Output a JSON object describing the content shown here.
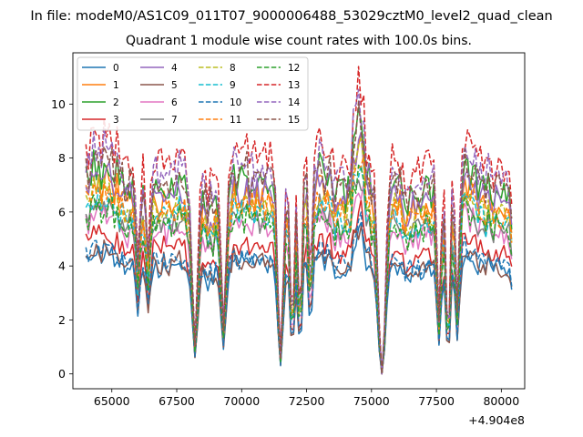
{
  "chart_data": {
    "type": "line",
    "suptitle": "In file: modeM0/AS1C09_011T07_9000006488_53029cztM0_level2_quad_clean",
    "title": "Quadrant 1 module wise count rates with 100.0s bins.",
    "xlabel": "",
    "ylabel": "",
    "offset_text": "+4.904e8",
    "xlim": [
      63500,
      80900
    ],
    "ylim": [
      -0.55,
      11.9
    ],
    "x_ticks": [
      65000,
      67500,
      70000,
      72500,
      75000,
      77500,
      80000
    ],
    "x_tick_labels": [
      "65000",
      "67500",
      "70000",
      "72500",
      "75000",
      "77500",
      "80000"
    ],
    "y_ticks": [
      0,
      2,
      4,
      6,
      8,
      10
    ],
    "y_tick_labels": [
      "0",
      "2",
      "4",
      "6",
      "8",
      "10"
    ],
    "legend_position": "upper-left",
    "x_start": 64000,
    "x_end": 80400,
    "x_step": 100,
    "gti_gaps": [
      [
        65900,
        66000
      ],
      [
        67400,
        67500
      ],
      [
        69300,
        69400
      ],
      [
        71200,
        71300
      ],
      [
        75000,
        75100
      ],
      [
        76600,
        76700
      ],
      [
        79000,
        79100
      ]
    ],
    "dips": [
      {
        "center": 66000,
        "depth": 0.4,
        "width": 90
      },
      {
        "center": 66400,
        "depth": 0.35,
        "width": 90
      },
      {
        "center": 68200,
        "depth": 0.85,
        "width": 140
      },
      {
        "center": 69300,
        "depth": 0.75,
        "width": 130
      },
      {
        "center": 71500,
        "depth": 0.92,
        "width": 140
      },
      {
        "center": 71950,
        "depth": 0.75,
        "width": 120
      },
      {
        "center": 72250,
        "depth": 0.72,
        "width": 120
      },
      {
        "center": 72650,
        "depth": 0.55,
        "width": 110
      },
      {
        "center": 75400,
        "depth": 1.0,
        "width": 200
      },
      {
        "center": 77600,
        "depth": 0.75,
        "width": 110
      },
      {
        "center": 77950,
        "depth": 0.85,
        "width": 120
      },
      {
        "center": 78300,
        "depth": 0.7,
        "width": 110
      },
      {
        "center": 80400,
        "depth": 0.25,
        "width": 80
      }
    ],
    "flare": {
      "center": 74500,
      "amplitude": 0.5,
      "width": 260
    },
    "series": [
      {
        "name": "0",
        "color": "#1f77b4",
        "linestyle": "solid",
        "level": 3.95
      },
      {
        "name": "1",
        "color": "#ff7f0e",
        "linestyle": "solid",
        "level": 6.4
      },
      {
        "name": "2",
        "color": "#2ca02c",
        "linestyle": "solid",
        "level": 6.9
      },
      {
        "name": "3",
        "color": "#d62728",
        "linestyle": "solid",
        "level": 4.6
      },
      {
        "name": "4",
        "color": "#9467bd",
        "linestyle": "solid",
        "level": 6.6
      },
      {
        "name": "5",
        "color": "#8c564b",
        "linestyle": "solid",
        "level": 4.05
      },
      {
        "name": "6",
        "color": "#e377c2",
        "linestyle": "solid",
        "level": 5.3
      },
      {
        "name": "7",
        "color": "#7f7f7f",
        "linestyle": "solid",
        "level": 5.6
      },
      {
        "name": "8",
        "color": "#bcbd22",
        "linestyle": "dashed",
        "level": 6.1
      },
      {
        "name": "9",
        "color": "#17becf",
        "linestyle": "dashed",
        "level": 5.8
      },
      {
        "name": "10",
        "color": "#1f77b4",
        "linestyle": "dashed",
        "level": 4.2
      },
      {
        "name": "11",
        "color": "#ff7f0e",
        "linestyle": "dashed",
        "level": 6.05
      },
      {
        "name": "12",
        "color": "#2ca02c",
        "linestyle": "dashed",
        "level": 5.5
      },
      {
        "name": "13",
        "color": "#d62728",
        "linestyle": "dashed",
        "level": 7.85
      },
      {
        "name": "14",
        "color": "#9467bd",
        "linestyle": "dashed",
        "level": 7.4
      },
      {
        "name": "15",
        "color": "#8c564b",
        "linestyle": "dashed",
        "level": 7.05
      }
    ]
  }
}
